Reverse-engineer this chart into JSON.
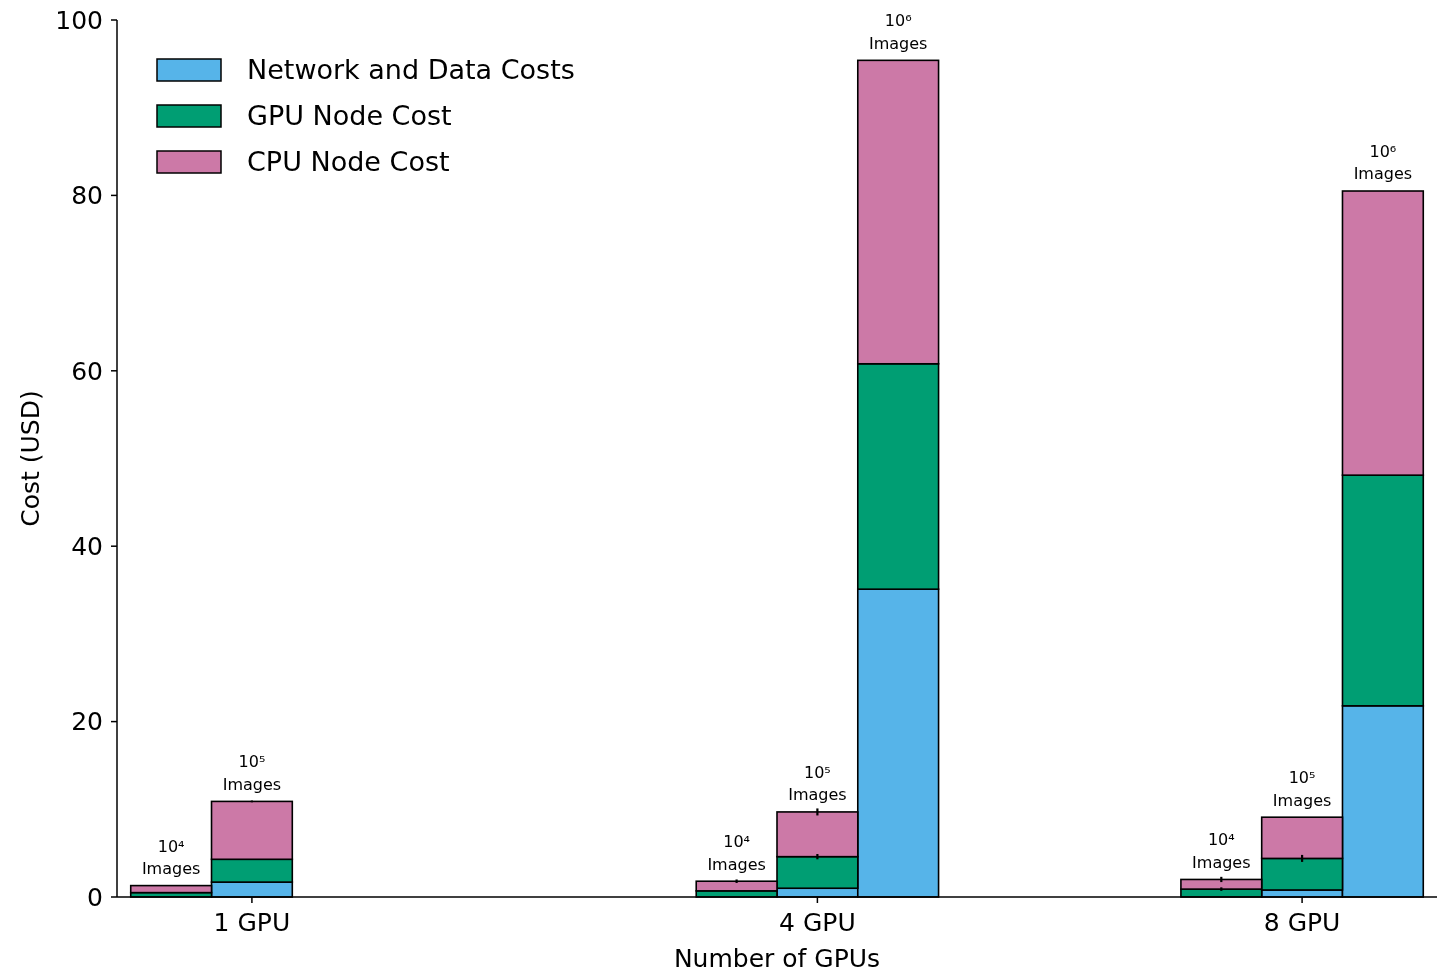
{
  "chart_data": {
    "type": "bar",
    "stacked": true,
    "xlabel": "Number of GPUs",
    "ylabel": "Cost (USD)",
    "categories": [
      null,
      "1 GPU",
      null,
      null,
      null,
      null,
      null,
      null,
      "4 GPU",
      null,
      null,
      null,
      null,
      null,
      "8 GPU",
      null
    ],
    "ylim": [
      0,
      100
    ],
    "yticks": [
      0,
      20,
      40,
      60,
      80,
      100
    ],
    "legend": "top left",
    "grid": false,
    "series": [
      {
        "name": "Network and Data Costs",
        "color": "#56b4e9",
        "values": [
          null,
          1.7,
          null,
          null,
          null,
          null,
          null,
          null,
          1.0,
          35.1,
          null,
          null,
          null,
          null,
          0.8,
          21.8
        ]
      },
      {
        "name": "GPU Node Cost",
        "color": "#009e73",
        "values": [
          0.5,
          2.6,
          null,
          null,
          null,
          null,
          null,
          0.7,
          3.6,
          25.7,
          null,
          null,
          null,
          0.9,
          3.6,
          26.3
        ],
        "errors": [
          null,
          null,
          null,
          null,
          null,
          null,
          null,
          null,
          0.3,
          null,
          null,
          null,
          null,
          0.2,
          0.4,
          null
        ]
      },
      {
        "name": "CPU Node Cost",
        "color": "#cc79a7",
        "values": [
          0.8,
          6.6,
          null,
          null,
          null,
          null,
          null,
          1.1,
          5.1,
          34.6,
          null,
          null,
          null,
          1.1,
          4.7,
          32.4
        ],
        "errors": [
          null,
          0.1,
          null,
          null,
          null,
          null,
          null,
          0.2,
          0.4,
          null,
          null,
          null,
          null,
          0.3,
          null,
          null
        ]
      }
    ],
    "annotations": [
      {
        "text": "10⁴ Images",
        "y": 1.3
      },
      {
        "text": "10⁵ Images",
        "y": 10.9
      },
      {
        "text": "10⁴ Images",
        "y": 1.8
      },
      {
        "text": "10⁵ Images",
        "y": 9.7
      },
      {
        "text": "10⁶ Images",
        "y": 95.4
      },
      {
        "text": "10⁴ Images",
        "y": 2.0
      },
      {
        "text": "10⁵ Images",
        "y": 9.1
      },
      {
        "text": "10⁶ Images",
        "y": 80.5
      }
    ]
  }
}
